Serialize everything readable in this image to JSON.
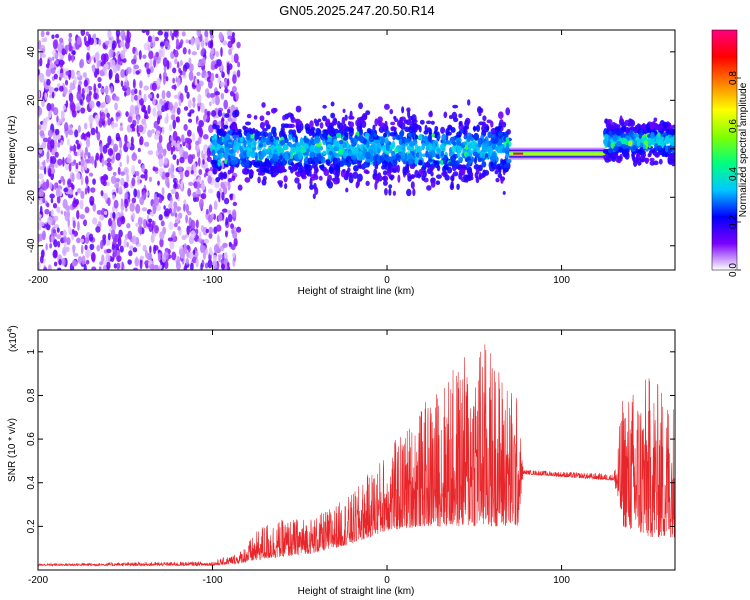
{
  "title": "GN05.2025.247.20.50.R14",
  "colors": {
    "signal": "#e8262a",
    "frame": "#000000"
  },
  "chart_data": [
    {
      "type": "heatmap",
      "name": "spectrogram",
      "xlabel": "Height of straight line (km)",
      "ylabel": "Frequency (Hz)",
      "xlim": [
        -200,
        165
      ],
      "ylim": [
        -50,
        49
      ],
      "x_ticks": [
        -200,
        -100,
        0,
        100
      ],
      "y_ticks": [
        -40,
        -20,
        0,
        20,
        40
      ],
      "colorbar": {
        "label": "Normalized spectral amplitude",
        "range": [
          0,
          1
        ],
        "ticks": [
          "0.0",
          "0.2",
          "0.4",
          "0.6",
          "0.8"
        ],
        "colormap": [
          "#ffffff",
          "#7a00ff",
          "#0000ff",
          "#00c8ff",
          "#00ff80",
          "#80ff00",
          "#ffff00",
          "#ff8000",
          "#ff0000",
          "#ff0080"
        ]
      },
      "regions": [
        {
          "x_range": [
            -200,
            -85
          ],
          "freq_range": [
            -50,
            49
          ],
          "amplitude": 0.1,
          "description_of_fill": "scattered noise"
        },
        {
          "x_range": [
            -100,
            70
          ],
          "center_freq": 0,
          "band_halfwidth": 10,
          "amplitude": 0.25
        },
        {
          "x_range": [
            70,
            125
          ],
          "center_freq": -2,
          "band_halfwidth": 2,
          "amplitude": 0.85
        },
        {
          "x_range": [
            125,
            165
          ],
          "center_freq": 3,
          "band_halfwidth": 6,
          "amplitude": 0.35
        }
      ]
    },
    {
      "type": "line",
      "name": "snr",
      "xlabel": "Height of straight line (km)",
      "ylabel": "SNR (10 * v/v)",
      "y_multiplier": "(x10",
      "y_multiplier_exp": "4",
      "y_multiplier_close": ")",
      "xlim": [
        -200,
        165
      ],
      "ylim": [
        0,
        1.1
      ],
      "x_ticks": [
        -200,
        -100,
        0,
        100
      ],
      "y_ticks": [
        0.2,
        0.4,
        0.6,
        0.8,
        1
      ],
      "envelope": [
        {
          "x": -200,
          "base": 0.02,
          "peak": 0.03
        },
        {
          "x": -100,
          "base": 0.02,
          "peak": 0.04
        },
        {
          "x": -85,
          "base": 0.03,
          "peak": 0.08
        },
        {
          "x": -70,
          "base": 0.05,
          "peak": 0.22
        },
        {
          "x": -40,
          "base": 0.08,
          "peak": 0.25
        },
        {
          "x": -20,
          "base": 0.12,
          "peak": 0.35
        },
        {
          "x": 0,
          "base": 0.18,
          "peak": 0.55
        },
        {
          "x": 20,
          "base": 0.2,
          "peak": 0.75
        },
        {
          "x": 40,
          "base": 0.2,
          "peak": 0.95
        },
        {
          "x": 55,
          "base": 0.2,
          "peak": 1.08
        },
        {
          "x": 75,
          "base": 0.2,
          "peak": 0.8
        },
        {
          "x": 78,
          "base": 0.44,
          "peak": 0.46
        },
        {
          "x": 130,
          "base": 0.41,
          "peak": 0.44
        },
        {
          "x": 135,
          "base": 0.2,
          "peak": 0.8
        },
        {
          "x": 150,
          "base": 0.15,
          "peak": 0.9
        },
        {
          "x": 165,
          "base": 0.15,
          "peak": 0.8
        }
      ]
    }
  ]
}
